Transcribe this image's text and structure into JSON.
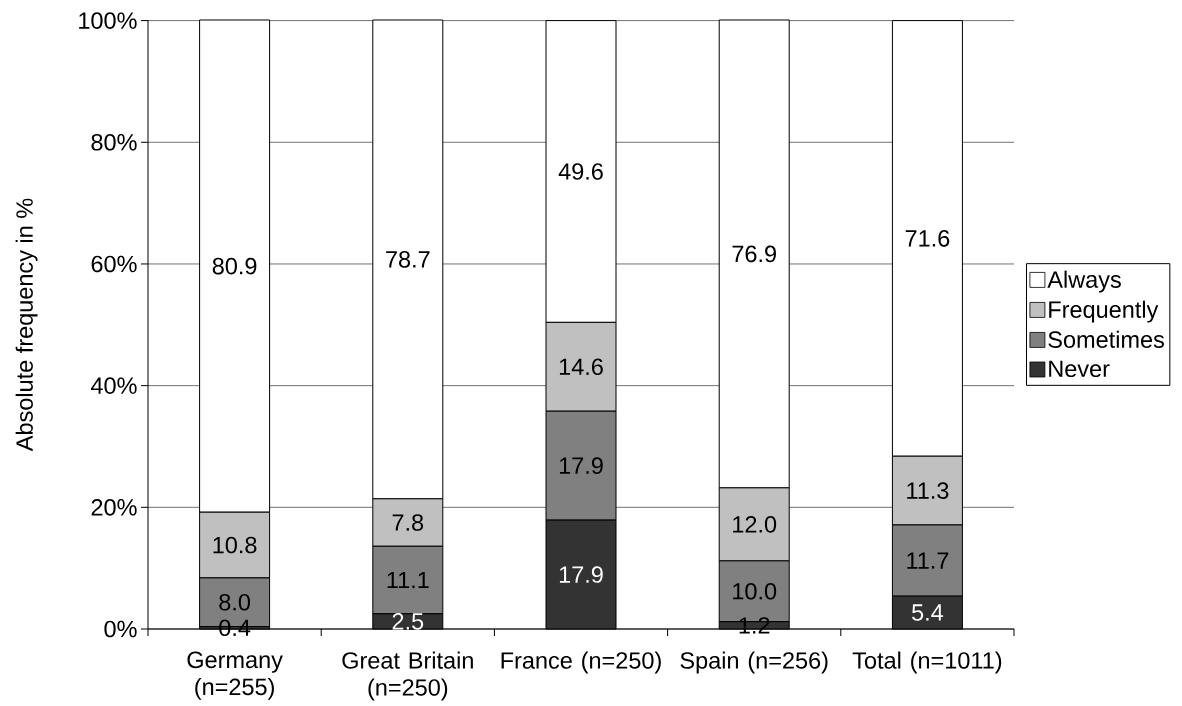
{
  "chart_data": {
    "type": "bar",
    "stacked": true,
    "categories": [
      "Germany (n=255)",
      "Great Britain (n=250)",
      "France (n=250)",
      "Spain (n=256)",
      "Total (n=1011)"
    ],
    "series": [
      {
        "name": "Never",
        "color": "#333333",
        "values": [
          0.4,
          2.5,
          17.9,
          1.2,
          5.4
        ],
        "value_labels": [
          "0.4",
          "2.5",
          "17.9",
          "1.2",
          "5.4"
        ]
      },
      {
        "name": "Sometimes",
        "color": "#808080",
        "values": [
          8.0,
          11.1,
          17.9,
          10.0,
          11.7
        ],
        "value_labels": [
          "8.0",
          "11.1",
          "17.9",
          "10.0",
          "11.7"
        ]
      },
      {
        "name": "Frequently",
        "color": "#c0c0c0",
        "values": [
          10.8,
          7.8,
          14.6,
          12.0,
          11.3
        ],
        "value_labels": [
          "10.8",
          "7.8",
          "14.6",
          "12.0",
          "11.3"
        ]
      },
      {
        "name": "Always",
        "color": "#ffffff",
        "values": [
          80.9,
          78.7,
          49.6,
          76.9,
          71.6
        ],
        "value_labels": [
          "80.9",
          "78.7",
          "49.6",
          "76.9",
          "71.6"
        ]
      }
    ],
    "ylabel": "Absolute frequency in %",
    "ylim": [
      0,
      100.1
    ],
    "yticks": [
      {
        "value": 0,
        "label": "0%"
      },
      {
        "value": 20,
        "label": "20%"
      },
      {
        "value": 40,
        "label": "40%"
      },
      {
        "value": 60,
        "label": "60%"
      },
      {
        "value": 80,
        "label": "80%"
      },
      {
        "value": 100,
        "label": "100%"
      }
    ],
    "grid": "y",
    "legend": "right"
  }
}
